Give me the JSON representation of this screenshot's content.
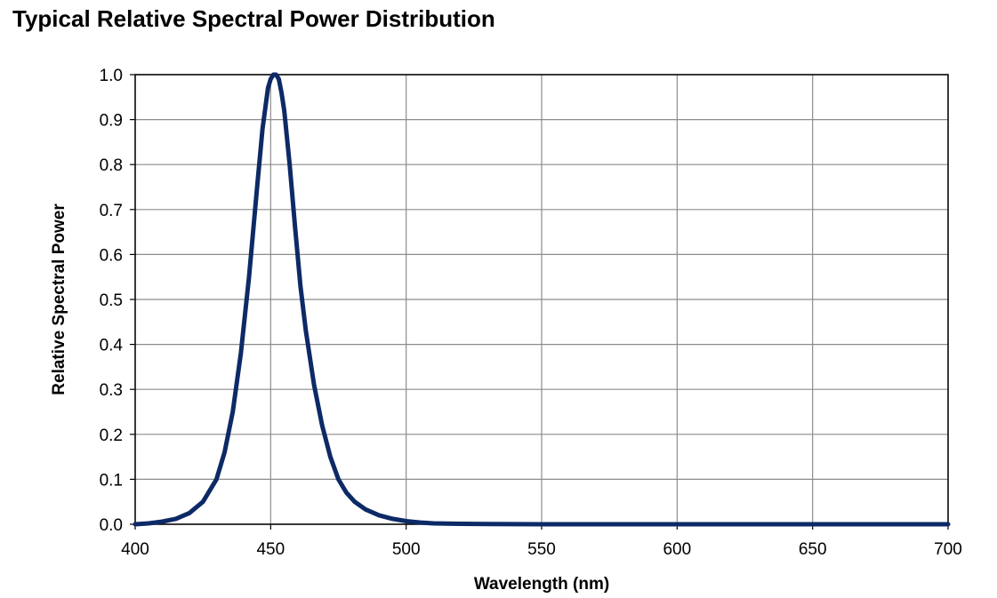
{
  "chart_data": {
    "type": "line",
    "title": "Typical Relative Spectral Power Distribution",
    "xlabel": "Wavelength (nm)",
    "ylabel": "Relative Spectral Power",
    "xlim": [
      400,
      700
    ],
    "ylim": [
      0,
      1.0
    ],
    "x_ticks": [
      "400",
      "450",
      "500",
      "550",
      "600",
      "650",
      "700"
    ],
    "y_ticks": [
      "0.0",
      "0.1",
      "0.2",
      "0.3",
      "0.4",
      "0.5",
      "0.6",
      "0.7",
      "0.8",
      "0.9",
      "1.0"
    ],
    "grid": true,
    "line_color": "#0d2a66",
    "series": [
      {
        "x": [
          400,
          405,
          410,
          415,
          420,
          425,
          430,
          433,
          436,
          439,
          442,
          445,
          447,
          449,
          450,
          451,
          452,
          453,
          454,
          455,
          457,
          459,
          461,
          463,
          466,
          469,
          472,
          475,
          478,
          481,
          485,
          490,
          495,
          500,
          505,
          510,
          520,
          530,
          550,
          600,
          650,
          700
        ],
        "y": [
          0.0,
          0.002,
          0.006,
          0.012,
          0.025,
          0.05,
          0.1,
          0.16,
          0.25,
          0.38,
          0.55,
          0.75,
          0.88,
          0.97,
          0.99,
          1.0,
          1.0,
          0.99,
          0.96,
          0.92,
          0.8,
          0.66,
          0.53,
          0.43,
          0.31,
          0.22,
          0.15,
          0.1,
          0.07,
          0.05,
          0.033,
          0.02,
          0.012,
          0.007,
          0.004,
          0.002,
          0.001,
          0.0005,
          0.0,
          0.0,
          0.0,
          0.0
        ]
      }
    ]
  }
}
